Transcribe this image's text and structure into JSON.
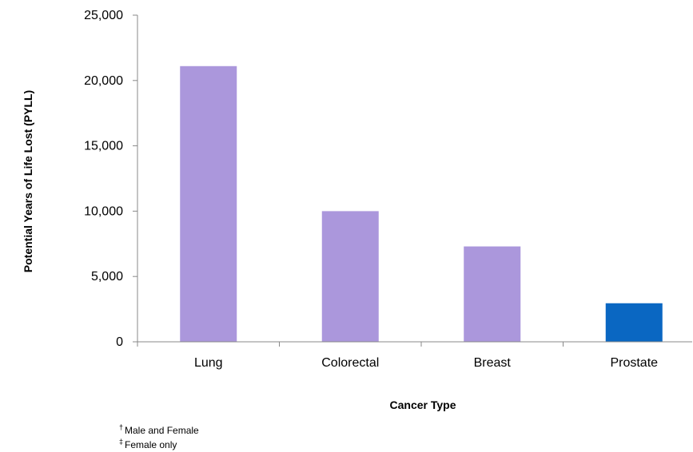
{
  "chart_data": {
    "type": "bar",
    "categories": [
      "Lung",
      "Colorectal",
      "Breast",
      "Prostate"
    ],
    "values": [
      21100,
      10000,
      7300,
      2950
    ],
    "colors": [
      "#ab97dc",
      "#ab97dc",
      "#ab97dc",
      "#0a67c2"
    ],
    "ylim": [
      0,
      25000
    ],
    "yticks": [
      0,
      5000,
      10000,
      15000,
      20000,
      25000
    ],
    "ytick_labels": [
      "0",
      "5,000",
      "10,000",
      "15,000",
      "20,000",
      "25,000"
    ],
    "xlabel": "Cancer Type",
    "ylabel": "Potential Years of Life Lost (PYLL)",
    "grid": false,
    "legend": "none"
  },
  "footnotes": [
    {
      "mark": "†",
      "text": "Male and Female"
    },
    {
      "mark": "‡",
      "text": "Female only"
    }
  ]
}
